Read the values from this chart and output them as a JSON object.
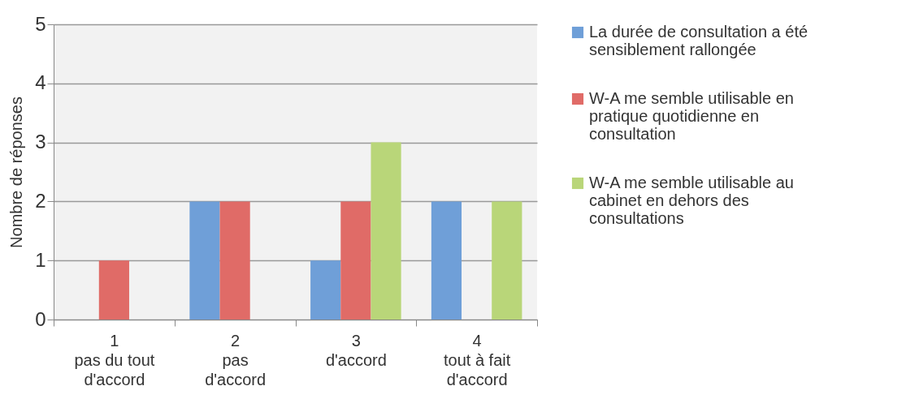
{
  "chart_data": {
    "type": "bar",
    "ylabel": "Nombre de réponses",
    "categories": [
      "1\npas du tout\nd'accord",
      "2\npas\nd'accord",
      "3\nd'accord",
      "4\ntout à fait\nd'accord"
    ],
    "series": [
      {
        "name": "La durée de consultation a été sensiblement rallongée",
        "color": "#6f9fd8",
        "values": [
          0,
          2,
          1,
          2
        ]
      },
      {
        "name": "W-A me semble utilisable en pratique quotidienne en consultation",
        "color": "#e06b67",
        "values": [
          1,
          2,
          2,
          0
        ]
      },
      {
        "name": "W-A me semble utilisable au cabinet en dehors des consultations",
        "color": "#b9d679",
        "values": [
          0,
          0,
          3,
          2
        ]
      }
    ],
    "ylim": [
      0,
      5
    ],
    "yticks": [
      0,
      1,
      2,
      3,
      4,
      5
    ],
    "grid": "y",
    "legend": "right"
  }
}
